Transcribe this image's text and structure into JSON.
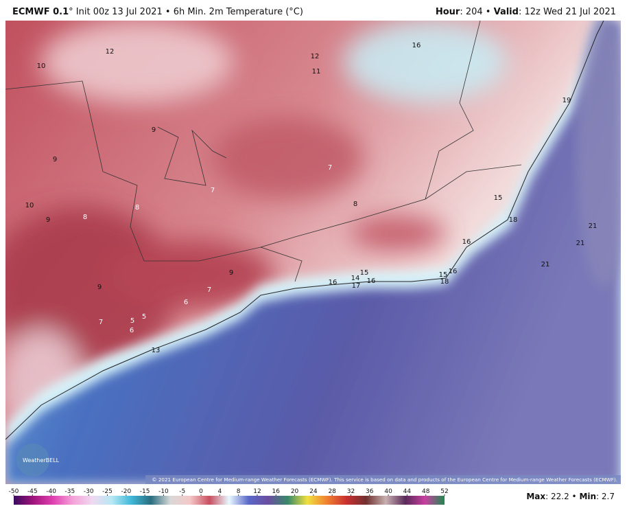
{
  "header": {
    "model": "ECMWF 0.1",
    "description": "° Init 00z 13 Jul 2021 • 6h Min. 2m Temperature (°C)",
    "hour_label": "Hour",
    "hour_text": ": 204 • ",
    "valid_label": "Valid",
    "valid_text": ": 12z Wed 21 Jul 2021"
  },
  "map_labels": [
    12,
    10,
    12,
    11,
    16,
    19,
    9,
    9,
    7,
    7,
    8,
    10,
    9,
    8,
    8,
    15,
    18,
    16,
    21,
    21,
    21,
    9,
    7,
    6,
    9,
    7,
    5,
    5,
    6,
    13,
    16,
    14,
    17,
    16,
    15,
    15,
    16,
    18
  ],
  "watermark": "WeatherBELL",
  "copyright": "© 2021 European Centre for Medium-range Weather Forecasts (ECMWF). This service is based on data and products of the European Centre for Medium-range Weather Forecasts (ECMWF).",
  "legend": {
    "ticks": [
      -50,
      -45,
      -40,
      -35,
      -30,
      -25,
      -20,
      -15,
      -10,
      -5,
      0,
      4,
      8,
      12,
      16,
      20,
      24,
      28,
      32,
      36,
      40,
      44,
      48,
      52
    ],
    "colors": [
      "#3a0a5e",
      "#a0147c",
      "#e040b0",
      "#f4a0d8",
      "#f0d8f0",
      "#b8e8f4",
      "#40b8d8",
      "#2a6e80",
      "#d8d8d8",
      "#f4c8c8",
      "#c85060",
      "#e8f8ff",
      "#5a68c8",
      "#6a4ea0",
      "#3a8a6a",
      "#f0e040",
      "#f08030",
      "#c83030",
      "#703030",
      "#c8b0b0",
      "#5a2a5a",
      "#c840a0",
      "#208850"
    ]
  },
  "stats": {
    "max_label": "Max",
    "max_text": ": 22.2 • ",
    "min_label": "Min",
    "min_text": ": 2.7"
  }
}
